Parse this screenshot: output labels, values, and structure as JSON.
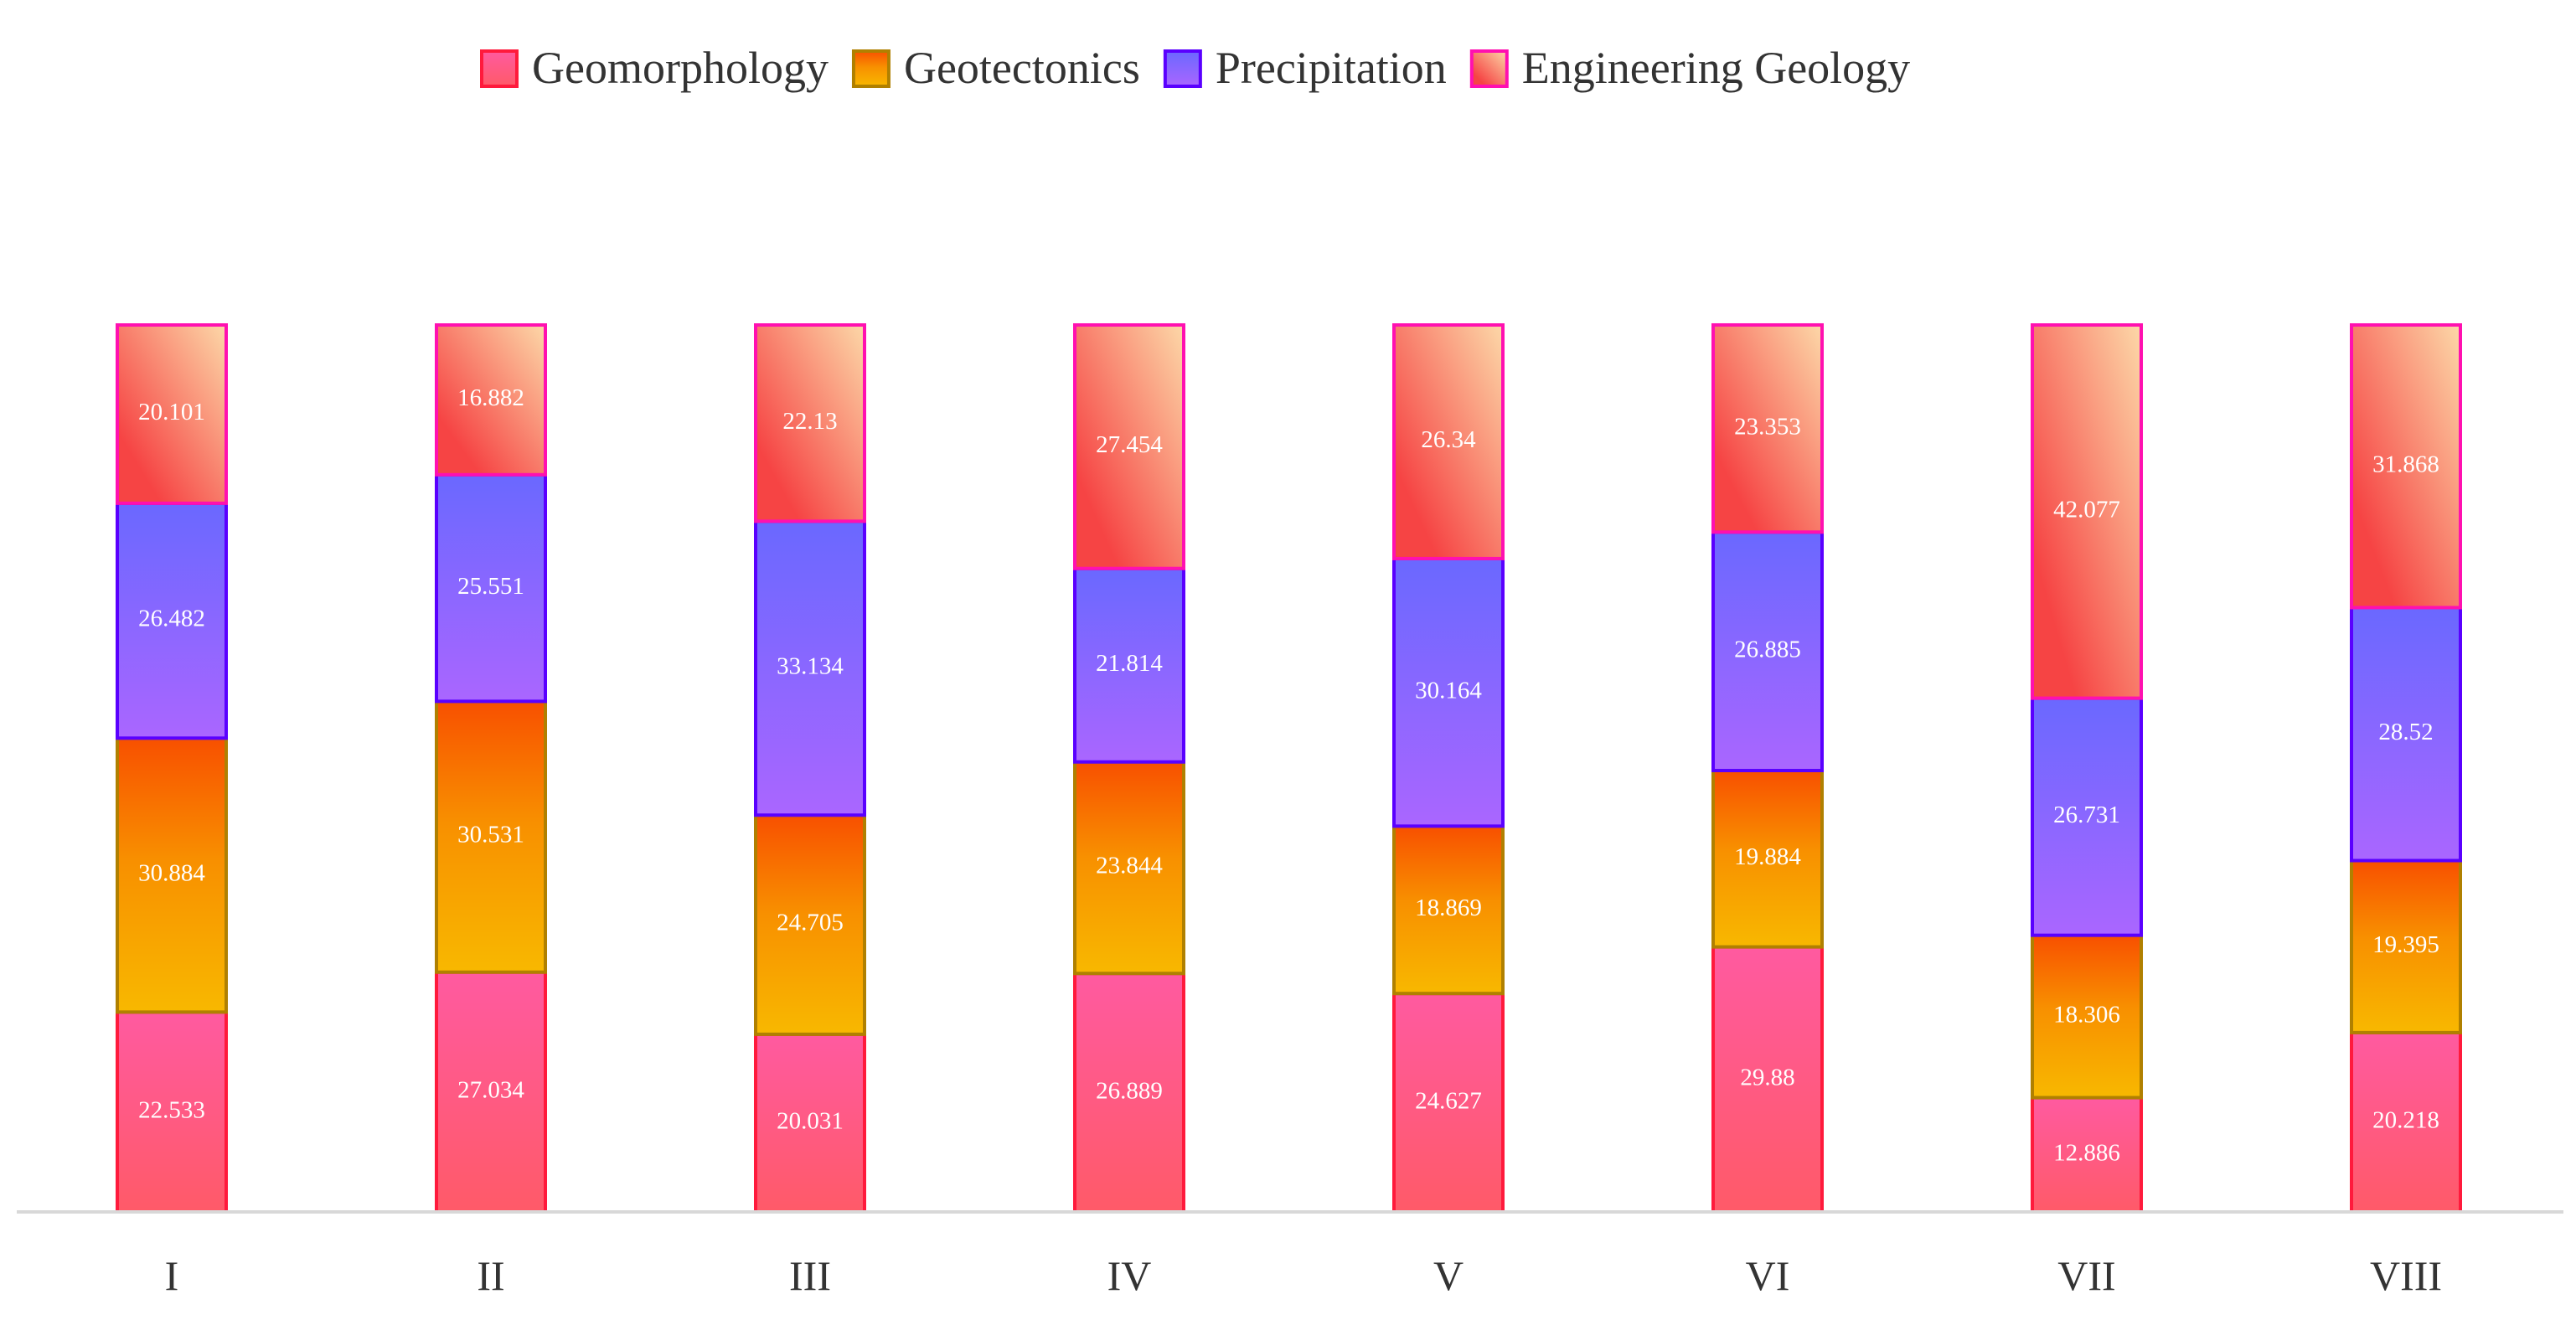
{
  "chart_data": {
    "type": "bar",
    "stacked": true,
    "title": "",
    "xlabel": "",
    "ylabel": "",
    "ylim": [
      0,
      100
    ],
    "grid": false,
    "legend_position": "top-center",
    "categories": [
      "I",
      "II",
      "III",
      "IV",
      "V",
      "VI",
      "VII",
      "VIII"
    ],
    "series": [
      {
        "name": "Geomorphology",
        "color": "#ff5a8a",
        "border": "#ff1a3c",
        "values": [
          22.533,
          27.034,
          20.031,
          26.889,
          24.627,
          29.88,
          12.886,
          20.218
        ],
        "labels": [
          "22.533",
          "27.034",
          "20.031",
          "26.889",
          "24.627",
          "29.88",
          "12.886",
          "20.218"
        ]
      },
      {
        "name": "Geotectonics",
        "color": "#f88a00",
        "border": "#b08000",
        "values": [
          30.884,
          30.531,
          24.705,
          23.844,
          18.869,
          19.884,
          18.306,
          19.395
        ],
        "labels": [
          "30.884",
          "30.531",
          "24.705",
          "23.844",
          "18.869",
          "19.884",
          "18.306",
          "19.395"
        ]
      },
      {
        "name": "Precipitation",
        "color": "#8a66ff",
        "border": "#5a00ff",
        "values": [
          26.482,
          25.551,
          33.134,
          21.814,
          30.164,
          26.885,
          26.731,
          28.52
        ],
        "labels": [
          "26.482",
          "25.551",
          "33.134",
          "21.814",
          "30.164",
          "26.885",
          "26.731",
          "28.52"
        ]
      },
      {
        "name": "Engineering Geology",
        "color": "#f46a5a",
        "border": "#ff10b0",
        "values": [
          20.101,
          16.882,
          22.13,
          27.454,
          26.34,
          23.353,
          42.077,
          31.868
        ],
        "labels": [
          "20.101",
          "16.882",
          "22.13",
          "27.454",
          "26.34",
          "23.353",
          "42.077",
          "31.868"
        ]
      }
    ]
  }
}
